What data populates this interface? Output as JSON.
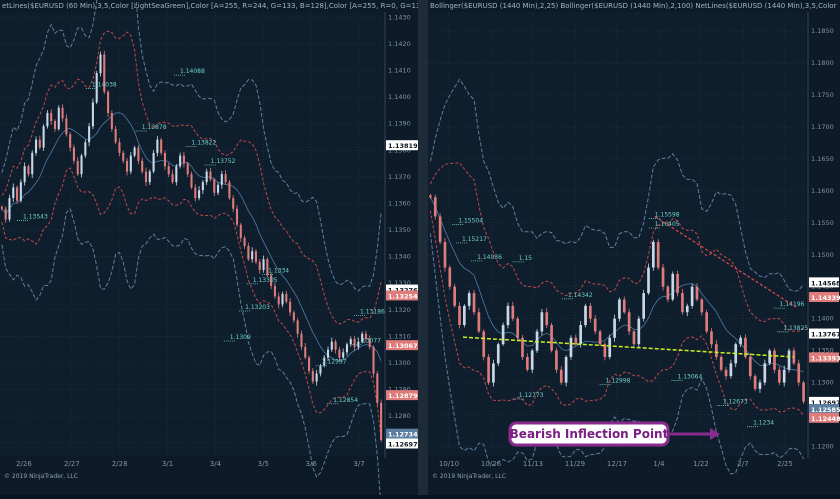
{
  "left_panel": {
    "header": "etLines($EURUSD (60 Min),3,5,Color [LightSeaGreen],Color [A=255, R=244, G=133, B=128],Color [A=255, R=0, G=131",
    "copyright": "© 2019 NinjaTrader, LLC"
  },
  "right_panel": {
    "header": "Bollinger($EURUSD (1440 Min),2,25)  Bollinger($EURUSD (1440 Min),2,100)  NetLines($EURUSD (1440 Min),3,5,Color",
    "copyright": "© 2019 NinjaTrader, LLC"
  },
  "callout": {
    "text": "Bearish Inflection Point",
    "color": "#7a1f82"
  },
  "colors": {
    "bg": "#0d1a28",
    "up": "#c8d8e8",
    "down": "#e07b7b",
    "band_blue": "#5c7ea0",
    "band_red": "#c04848",
    "trend_yellow": "#c8f020",
    "trend_red": "#e04a4a",
    "cyan": "#6fd0c8"
  },
  "chart_data": [
    {
      "type": "candlestick",
      "title": "EURUSD (60 Min)",
      "x_ticks": [
        "2/26",
        "2/27",
        "2/28",
        "3/1",
        "3/4",
        "3/5",
        "3/6",
        "3/7"
      ],
      "y_ticks": [
        "1.1430",
        "1.1420",
        "1.1410",
        "1.1400",
        "1.1390",
        "1.1380",
        "1.1370",
        "1.1360",
        "1.1350",
        "1.1340",
        "1.1330",
        "1.1320",
        "1.1310",
        "1.1300",
        "1.1290",
        "1.1280",
        "1.1270"
      ],
      "ylim": [
        1.1265,
        1.1432
      ],
      "price_labels": [
        {
          "value": "1.13819",
          "y": 1.13819,
          "color": "#ffffff"
        },
        {
          "value": "1.13276",
          "y": 1.13276,
          "color": "#ffffff"
        },
        {
          "value": "1.13254",
          "y": 1.13254,
          "color": "#e07b7b"
        },
        {
          "value": "1.13067",
          "y": 1.13067,
          "color": "#e07b7b"
        },
        {
          "value": "1.12879",
          "y": 1.12879,
          "color": "#e07b7b"
        },
        {
          "value": "1.12734",
          "y": 1.12734,
          "color": "#5c7ea0"
        },
        {
          "value": "1.12697",
          "y": 1.12697,
          "color": "#ffffff"
        }
      ],
      "annotations": [
        {
          "text": "1.14088",
          "x": 0.47,
          "y": 1.1409
        },
        {
          "text": "1.14038",
          "x": 0.24,
          "y": 1.1404
        },
        {
          "text": "1.13878",
          "x": 0.37,
          "y": 1.1388
        },
        {
          "text": "1.13822",
          "x": 0.5,
          "y": 1.13822
        },
        {
          "text": "1.13752",
          "x": 0.55,
          "y": 1.13752
        },
        {
          "text": "1.13543",
          "x": 0.06,
          "y": 1.13543
        },
        {
          "text": "1.13305",
          "x": 0.66,
          "y": 1.13305
        },
        {
          "text": "1.1334",
          "x": 0.7,
          "y": 1.1334
        },
        {
          "text": "1.13203",
          "x": 0.64,
          "y": 1.13203
        },
        {
          "text": "1.1309",
          "x": 0.6,
          "y": 1.1309
        },
        {
          "text": "1.13186",
          "x": 0.94,
          "y": 1.13186
        },
        {
          "text": "1.13077",
          "x": 0.93,
          "y": 1.13077
        },
        {
          "text": "1.12997",
          "x": 0.84,
          "y": 1.12997
        },
        {
          "text": "1.12854",
          "x": 0.87,
          "y": 1.12854
        }
      ],
      "close": [
        1.1358,
        1.1354,
        1.1362,
        1.1366,
        1.1361,
        1.1368,
        1.1374,
        1.1371,
        1.1379,
        1.1384,
        1.1381,
        1.1389,
        1.1394,
        1.1391,
        1.1388,
        1.1396,
        1.1392,
        1.1386,
        1.1381,
        1.1376,
        1.1371,
        1.1378,
        1.1383,
        1.1389,
        1.1398,
        1.1409,
        1.1416,
        1.1402,
        1.1394,
        1.1388,
        1.1383,
        1.1379,
        1.1376,
        1.1372,
        1.1378,
        1.1381,
        1.1376,
        1.1372,
        1.1368,
        1.1372,
        1.1379,
        1.1384,
        1.1379,
        1.1374,
        1.1371,
        1.1368,
        1.1374,
        1.1378,
        1.1375,
        1.1371,
        1.1366,
        1.1362,
        1.1365,
        1.1368,
        1.1372,
        1.1369,
        1.1364,
        1.1367,
        1.1371,
        1.1368,
        1.1362,
        1.1358,
        1.1352,
        1.1347,
        1.1344,
        1.1339,
        1.1342,
        1.1338,
        1.1335,
        1.1339,
        1.1333,
        1.1329,
        1.1325,
        1.1322,
        1.1326,
        1.1323,
        1.1319,
        1.1316,
        1.1311,
        1.1306,
        1.1302,
        1.1297,
        1.1293,
        1.1296,
        1.1299,
        1.1302,
        1.1305,
        1.1308,
        1.1305,
        1.1302,
        1.1304,
        1.1307,
        1.1309,
        1.1306,
        1.1308,
        1.1311,
        1.1309,
        1.1306,
        1.1296,
        1.1285,
        1.1271
      ]
    },
    {
      "type": "candlestick",
      "title": "EURUSD (1440 Min)",
      "x_ticks": [
        "10/10",
        "10/26",
        "11/13",
        "11/29",
        "12/17",
        "1/4",
        "1/22",
        "2/7",
        "2/25"
      ],
      "y_ticks": [
        "1.1850",
        "1.1800",
        "1.1750",
        "1.1700",
        "1.1650",
        "1.1600",
        "1.1550",
        "1.1500",
        "1.1450",
        "1.1400",
        "1.1350",
        "1.1300",
        "1.1250",
        "1.1200"
      ],
      "ylim": [
        1.1185,
        1.188
      ],
      "price_labels": [
        {
          "value": "1.14568",
          "y": 1.14568,
          "color": "#ffffff"
        },
        {
          "value": "1.14339",
          "y": 1.14339,
          "color": "#e07b7b"
        },
        {
          "value": "1.13767",
          "y": 1.13767,
          "color": "#ffffff"
        },
        {
          "value": "1.13393",
          "y": 1.13393,
          "color": "#e07b7b"
        },
        {
          "value": "1.12697",
          "y": 1.12697,
          "color": "#ffffff"
        },
        {
          "value": "1.12585",
          "y": 1.12585,
          "color": "#5c7ea0"
        },
        {
          "value": "1.12448",
          "y": 1.12448,
          "color": "#e07b7b"
        }
      ],
      "annotations": [
        {
          "text": "1.15217",
          "x": 0.09,
          "y": 1.15217
        },
        {
          "text": "1.15504",
          "x": 0.08,
          "y": 1.15504
        },
        {
          "text": "1.15598",
          "x": 0.6,
          "y": 1.15598
        },
        {
          "text": "1.16405",
          "x": 0.6,
          "y": 1.1545
        },
        {
          "text": "1.14936",
          "x": 0.13,
          "y": 1.14936
        },
        {
          "text": "1.15",
          "x": 0.24,
          "y": 1.1492
        },
        {
          "text": "1.14342",
          "x": 0.37,
          "y": 1.14342
        },
        {
          "text": "1.14196",
          "x": 0.93,
          "y": 1.14196
        },
        {
          "text": "1.13825",
          "x": 0.94,
          "y": 1.13825
        },
        {
          "text": "1.12998",
          "x": 0.47,
          "y": 1.12998
        },
        {
          "text": "1.13064",
          "x": 0.66,
          "y": 1.13064
        },
        {
          "text": "1.12673",
          "x": 0.78,
          "y": 1.12673
        },
        {
          "text": "1.12773",
          "x": 0.24,
          "y": 1.12773
        },
        {
          "text": "1.1234",
          "x": 0.86,
          "y": 1.1234
        }
      ],
      "close": [
        1.159,
        1.156,
        1.152,
        1.148,
        1.145,
        1.142,
        1.139,
        1.142,
        1.144,
        1.141,
        1.138,
        1.134,
        1.13,
        1.133,
        1.136,
        1.139,
        1.142,
        1.14,
        1.137,
        1.134,
        1.132,
        1.135,
        1.138,
        1.141,
        1.139,
        1.135,
        1.132,
        1.13,
        1.134,
        1.137,
        1.136,
        1.139,
        1.142,
        1.14,
        1.138,
        1.136,
        1.134,
        1.137,
        1.14,
        1.143,
        1.141,
        1.138,
        1.136,
        1.14,
        1.144,
        1.148,
        1.152,
        1.148,
        1.145,
        1.143,
        1.147,
        1.144,
        1.141,
        1.142,
        1.145,
        1.143,
        1.141,
        1.138,
        1.136,
        1.134,
        1.132,
        1.131,
        1.133,
        1.136,
        1.137,
        1.134,
        1.131,
        1.129,
        1.13,
        1.133,
        1.135,
        1.132,
        1.13,
        1.132,
        1.135,
        1.133,
        1.13,
        1.127
      ]
    }
  ]
}
